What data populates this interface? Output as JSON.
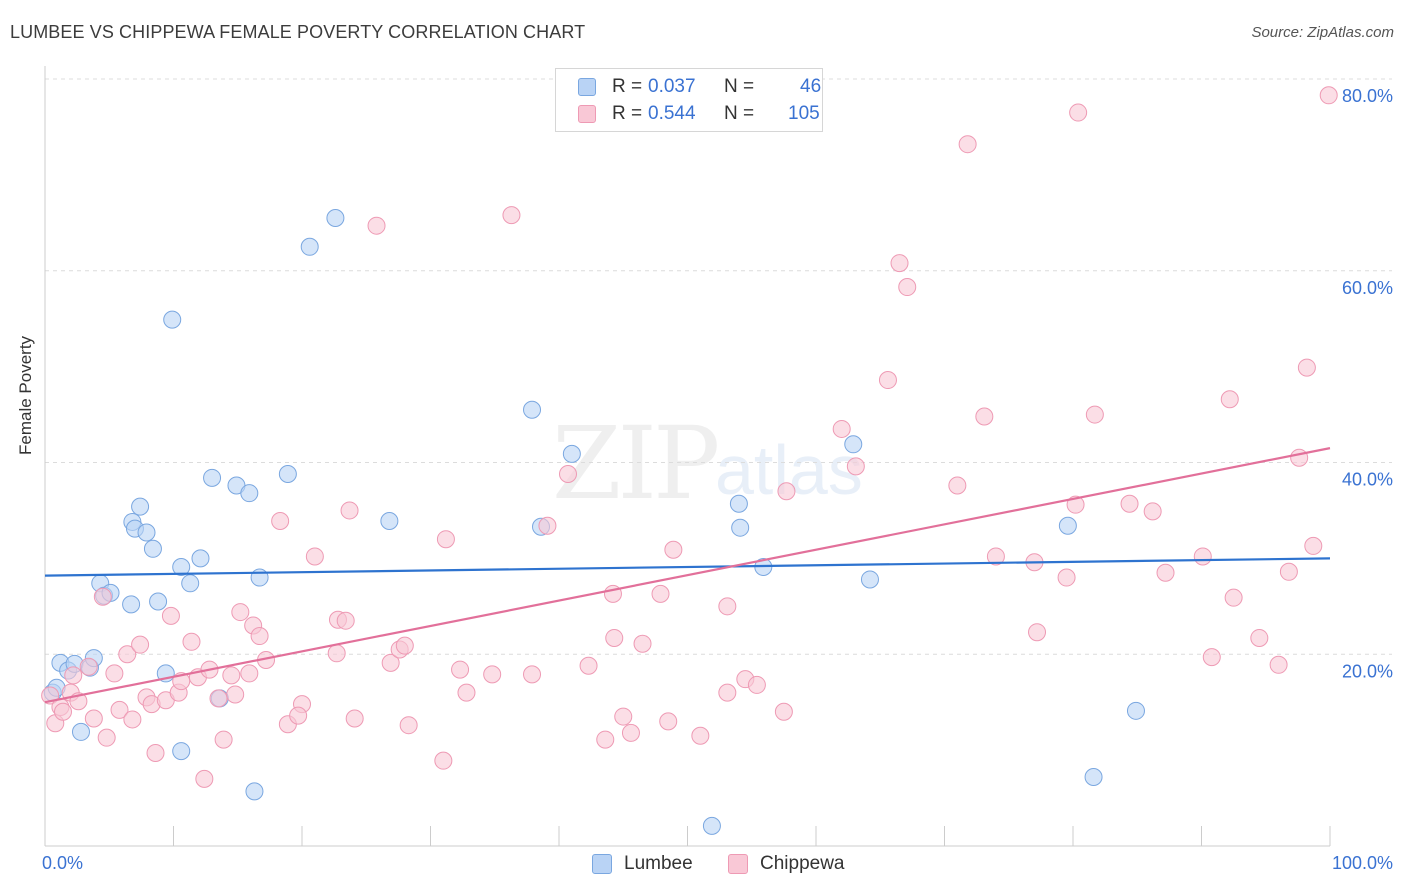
{
  "title": "LUMBEE VS CHIPPEWA FEMALE POVERTY CORRELATION CHART",
  "source": "Source: ZipAtlas.com",
  "watermark": {
    "zip": "ZIP",
    "atlas": "atlas"
  },
  "legend": {
    "r_label": "R =",
    "n_label": "N =",
    "rows": [
      {
        "r": "0.037",
        "n": "46"
      },
      {
        "r": "0.544",
        "n": "105"
      }
    ]
  },
  "colors": {
    "lumbee_fill": "#b9d3f5",
    "lumbee_stroke": "#7aa7e0",
    "lumbee_line": "#2e73cf",
    "chippewa_fill": "#f9c8d6",
    "chippewa_stroke": "#ee9ab4",
    "chippewa_line": "#e2709a",
    "tick_label": "#3a72d2",
    "grid": "#dcdcdc"
  },
  "chart_data": {
    "type": "scatter",
    "title": "LUMBEE VS CHIPPEWA FEMALE POVERTY CORRELATION CHART",
    "xlabel": "",
    "ylabel": "Female Poverty",
    "xlim": [
      0,
      100
    ],
    "ylim": [
      0,
      80
    ],
    "x_tick_labels": [
      "0.0%",
      "100.0%"
    ],
    "y_tick_labels": [
      "20.0%",
      "40.0%",
      "60.0%",
      "80.0%"
    ],
    "y_ticks": [
      20,
      40,
      60,
      80
    ],
    "grid": true,
    "legend_position": "top-center",
    "series": [
      {
        "name": "Lumbee",
        "r": 0.037,
        "n": 46,
        "trend": {
          "x": [
            0,
            100
          ],
          "y": [
            28.2,
            30.0
          ]
        },
        "points": [
          [
            0.6,
            16.0
          ],
          [
            0.9,
            16.5
          ],
          [
            1.2,
            19.1
          ],
          [
            1.8,
            18.3
          ],
          [
            2.3,
            19.0
          ],
          [
            2.8,
            11.9
          ],
          [
            3.5,
            18.6
          ],
          [
            3.8,
            19.6
          ],
          [
            4.3,
            27.4
          ],
          [
            4.6,
            26.1
          ],
          [
            5.1,
            26.4
          ],
          [
            6.8,
            33.8
          ],
          [
            7.0,
            33.1
          ],
          [
            6.7,
            25.2
          ],
          [
            7.4,
            35.4
          ],
          [
            7.9,
            32.7
          ],
          [
            8.4,
            31.0
          ],
          [
            8.8,
            25.5
          ],
          [
            9.4,
            18.0
          ],
          [
            9.9,
            54.9
          ],
          [
            10.6,
            29.1
          ],
          [
            10.6,
            9.9
          ],
          [
            11.3,
            27.4
          ],
          [
            12.1,
            30.0
          ],
          [
            13.0,
            38.4
          ],
          [
            13.6,
            15.4
          ],
          [
            14.9,
            37.6
          ],
          [
            15.9,
            36.8
          ],
          [
            16.7,
            28.0
          ],
          [
            16.3,
            5.7
          ],
          [
            18.9,
            38.8
          ],
          [
            20.6,
            62.5
          ],
          [
            22.6,
            65.5
          ],
          [
            26.8,
            33.9
          ],
          [
            37.9,
            45.5
          ],
          [
            38.6,
            33.3
          ],
          [
            41.0,
            40.9
          ],
          [
            51.9,
            2.1
          ],
          [
            54.0,
            35.7
          ],
          [
            54.1,
            33.2
          ],
          [
            55.9,
            29.1
          ],
          [
            62.9,
            41.9
          ],
          [
            64.2,
            27.8
          ],
          [
            79.6,
            33.4
          ],
          [
            81.6,
            7.2
          ],
          [
            84.9,
            14.1
          ]
        ]
      },
      {
        "name": "Chippewa",
        "r": 0.544,
        "n": 105,
        "trend": {
          "x": [
            0,
            100
          ],
          "y": [
            15.0,
            41.5
          ]
        },
        "points": [
          [
            0.4,
            15.7
          ],
          [
            0.8,
            12.8
          ],
          [
            1.2,
            14.5
          ],
          [
            1.4,
            14.0
          ],
          [
            2.0,
            16.0
          ],
          [
            2.2,
            17.8
          ],
          [
            2.6,
            15.1
          ],
          [
            3.4,
            18.7
          ],
          [
            3.8,
            13.3
          ],
          [
            4.8,
            11.3
          ],
          [
            4.5,
            26.0
          ],
          [
            5.4,
            18.0
          ],
          [
            5.8,
            14.2
          ],
          [
            6.4,
            20.0
          ],
          [
            6.8,
            13.2
          ],
          [
            7.4,
            21.0
          ],
          [
            7.9,
            15.5
          ],
          [
            8.3,
            14.8
          ],
          [
            8.6,
            9.7
          ],
          [
            9.4,
            15.2
          ],
          [
            9.8,
            24.0
          ],
          [
            10.4,
            16.0
          ],
          [
            10.6,
            17.2
          ],
          [
            11.4,
            21.3
          ],
          [
            11.9,
            17.6
          ],
          [
            12.4,
            7.0
          ],
          [
            12.8,
            18.4
          ],
          [
            13.5,
            15.4
          ],
          [
            13.9,
            11.1
          ],
          [
            14.5,
            17.8
          ],
          [
            14.8,
            15.8
          ],
          [
            15.2,
            24.4
          ],
          [
            15.9,
            18.0
          ],
          [
            16.2,
            23.0
          ],
          [
            16.7,
            21.9
          ],
          [
            17.2,
            19.4
          ],
          [
            18.3,
            33.9
          ],
          [
            18.9,
            12.7
          ],
          [
            20.0,
            14.8
          ],
          [
            19.7,
            13.6
          ],
          [
            21.0,
            30.2
          ],
          [
            22.7,
            20.1
          ],
          [
            22.8,
            23.6
          ],
          [
            23.4,
            23.5
          ],
          [
            23.7,
            35.0
          ],
          [
            24.1,
            13.3
          ],
          [
            25.8,
            64.7
          ],
          [
            26.9,
            19.1
          ],
          [
            27.6,
            20.5
          ],
          [
            28.0,
            20.9
          ],
          [
            28.3,
            12.6
          ],
          [
            31.0,
            8.9
          ],
          [
            31.2,
            32.0
          ],
          [
            32.3,
            18.4
          ],
          [
            32.8,
            16.0
          ],
          [
            34.8,
            17.9
          ],
          [
            36.3,
            65.8
          ],
          [
            37.9,
            17.9
          ],
          [
            39.1,
            33.4
          ],
          [
            40.7,
            38.8
          ],
          [
            42.3,
            18.8
          ],
          [
            43.6,
            11.1
          ],
          [
            44.2,
            26.3
          ],
          [
            44.3,
            21.7
          ],
          [
            45.0,
            13.5
          ],
          [
            45.6,
            11.8
          ],
          [
            46.5,
            21.1
          ],
          [
            47.9,
            26.3
          ],
          [
            48.5,
            13.0
          ],
          [
            48.9,
            30.9
          ],
          [
            51.0,
            11.5
          ],
          [
            53.1,
            16.0
          ],
          [
            53.1,
            25.0
          ],
          [
            54.5,
            17.4
          ],
          [
            55.4,
            16.8
          ],
          [
            57.5,
            14.0
          ],
          [
            57.7,
            37.0
          ],
          [
            62.0,
            43.5
          ],
          [
            63.1,
            39.6
          ],
          [
            65.6,
            48.6
          ],
          [
            66.5,
            60.8
          ],
          [
            67.1,
            58.3
          ],
          [
            71.0,
            37.6
          ],
          [
            71.8,
            73.2
          ],
          [
            73.1,
            44.8
          ],
          [
            74.0,
            30.2
          ],
          [
            77.0,
            29.6
          ],
          [
            77.2,
            22.3
          ],
          [
            79.5,
            28.0
          ],
          [
            80.4,
            76.5
          ],
          [
            80.2,
            35.6
          ],
          [
            81.7,
            45.0
          ],
          [
            84.4,
            35.7
          ],
          [
            86.2,
            34.9
          ],
          [
            87.2,
            28.5
          ],
          [
            90.1,
            30.2
          ],
          [
            90.8,
            19.7
          ],
          [
            92.2,
            46.6
          ],
          [
            92.5,
            25.9
          ],
          [
            94.5,
            21.7
          ],
          [
            96.0,
            18.9
          ],
          [
            96.8,
            28.6
          ],
          [
            97.6,
            40.5
          ],
          [
            98.2,
            49.9
          ],
          [
            98.7,
            31.3
          ],
          [
            99.9,
            78.3
          ]
        ]
      }
    ]
  },
  "bottom_legend": {
    "items": [
      "Lumbee",
      "Chippewa"
    ]
  }
}
